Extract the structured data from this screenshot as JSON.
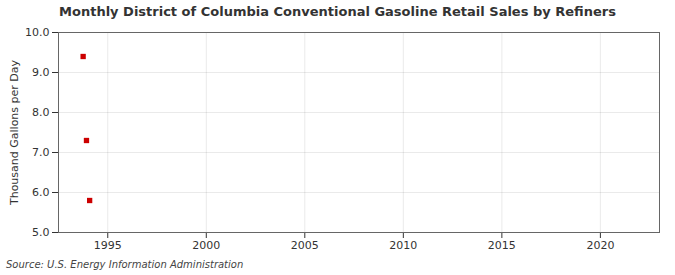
{
  "chart_data": {
    "type": "scatter",
    "title": "Monthly District of Columbia Conventional Gasoline Retail Sales by Refiners",
    "ylabel": "Thousand Gallons per Day",
    "source": "Source: U.S. Energy Information Administration",
    "x": [
      1993.75,
      1993.92,
      1994.08
    ],
    "values": [
      9.4,
      7.3,
      5.8
    ],
    "color": "#cc0000",
    "marker": "square",
    "xlim": [
      1992.5,
      2023
    ],
    "ylim": [
      5.0,
      10.0
    ],
    "xticks": [
      1995,
      2000,
      2005,
      2010,
      2015,
      2020
    ],
    "yticks": [
      {
        "value": 5.0,
        "label": "5.0"
      },
      {
        "value": 6.0,
        "label": "6.0"
      },
      {
        "value": 7.0,
        "label": "7.0"
      },
      {
        "value": 8.0,
        "label": "8.0"
      },
      {
        "value": 9.0,
        "label": "9.0"
      },
      {
        "value": 10.0,
        "label": "10.0"
      }
    ],
    "grid": true
  }
}
